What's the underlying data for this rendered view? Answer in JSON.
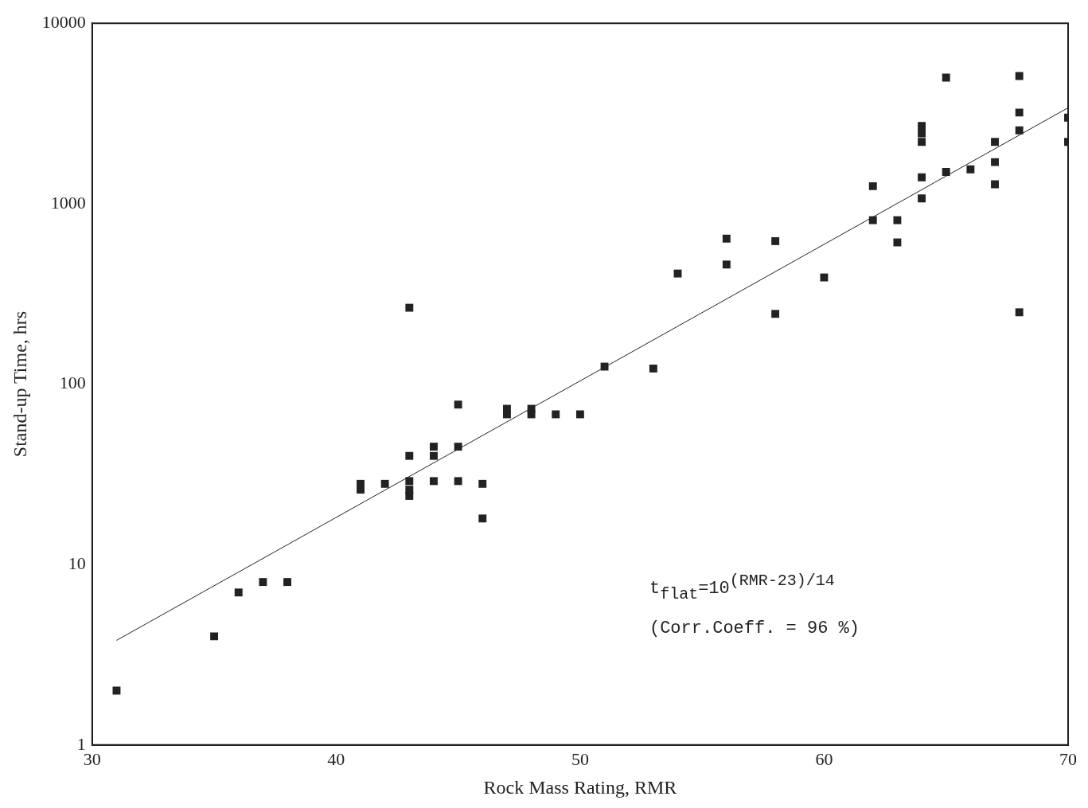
{
  "chart_data": {
    "type": "scatter",
    "xlabel": "Rock Mass Rating, RMR",
    "ylabel": "Stand-up Time, hrs",
    "log": "y",
    "xlim": [
      30,
      70
    ],
    "ylim": [
      1,
      10000
    ],
    "xticks": [
      30,
      40,
      50,
      60,
      70
    ],
    "yticks": [
      1,
      10,
      100,
      1000,
      10000
    ],
    "grid": false,
    "legend": false,
    "annotations": [
      "t$_{flat}$=10$^{(RMR-23)/14}$",
      "(Corr.Coeff. = 96 %)"
    ],
    "series": [
      {
        "color": "#222222",
        "marker": "square",
        "x": [
          31,
          35,
          36,
          37,
          38,
          41,
          41,
          42,
          43,
          43,
          43,
          43,
          43,
          44,
          44,
          44,
          45,
          45,
          45,
          46,
          46,
          47,
          47,
          48,
          48,
          49,
          50,
          51,
          53,
          54,
          56,
          56,
          58,
          58,
          60,
          62,
          62,
          63,
          63,
          64,
          64,
          64,
          64,
          64,
          65,
          65,
          66,
          67,
          67,
          67,
          68,
          68,
          68,
          68,
          70,
          70
        ],
        "values": [
          2,
          4,
          7,
          8,
          8,
          28,
          26,
          28,
          265,
          40,
          29,
          26,
          24,
          45,
          40,
          29,
          77,
          45,
          29,
          28,
          18,
          73,
          68,
          73,
          68,
          68,
          68,
          125,
          122,
          410,
          640,
          460,
          620,
          245,
          390,
          1250,
          810,
          810,
          610,
          2700,
          2450,
          2200,
          1400,
          1070,
          5000,
          1500,
          1550,
          2200,
          1700,
          1280,
          5100,
          3200,
          2550,
          250,
          3000,
          2200
        ]
      },
      {
        "type": "line",
        "color": "#222222",
        "marker": "none",
        "line_style": "solid",
        "x": [
          31,
          70
        ],
        "values": [
          3.8,
          3400
        ]
      }
    ]
  }
}
